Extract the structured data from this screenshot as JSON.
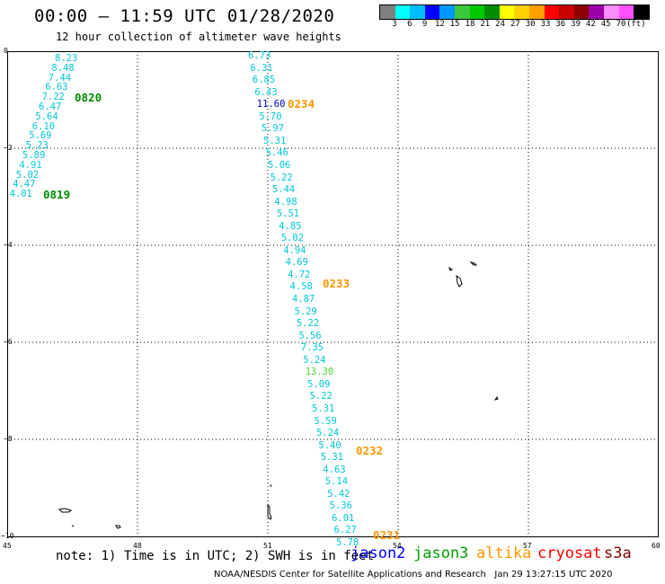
{
  "header": {
    "title": "00:00 – 11:59 UTC 01/28/2020",
    "subtitle": "12 hour collection of altimeter wave heights"
  },
  "legend": {
    "colors": [
      "#7f7f7f",
      "#00ffff",
      "#00bfff",
      "#0000ff",
      "#0096ff",
      "#3cc83c",
      "#00c800",
      "#008c00",
      "#ffff00",
      "#ffd200",
      "#ffa000",
      "#ff0000",
      "#c80000",
      "#8c0000",
      "#9b00aa",
      "#ff8cff",
      "#ff50ff",
      "#000000"
    ],
    "labels": [
      "3",
      "6",
      "9",
      "12",
      "15",
      "18",
      "21",
      "24",
      "27",
      "30",
      "33",
      "36",
      "39",
      "42",
      "45",
      "70",
      "(ft)"
    ]
  },
  "axes": {
    "x_ticks": [
      "45",
      "48",
      "51",
      "54",
      "57",
      "60"
    ],
    "y_ticks": [
      "0",
      "−2",
      "−4",
      "−6",
      "−8",
      "−10"
    ]
  },
  "wave_heights": {
    "track_west": [
      {
        "v": "8.23"
      },
      {
        "v": "8.48"
      },
      {
        "v": "7.44"
      },
      {
        "v": "6.63"
      },
      {
        "v": "7.22"
      },
      {
        "v": "6.47"
      },
      {
        "v": "5.64"
      },
      {
        "v": "6.10"
      },
      {
        "v": "5.69"
      },
      {
        "v": "5.23"
      },
      {
        "v": "5.89"
      },
      {
        "v": "4.91"
      },
      {
        "v": "5.02"
      },
      {
        "v": "4.47"
      },
      {
        "v": "4.01"
      }
    ],
    "track_east": [
      {
        "v": "6.73"
      },
      {
        "v": "6.31"
      },
      {
        "v": "6.85"
      },
      {
        "v": "6.43"
      },
      {
        "v": "11.60",
        "c": "#0000c8"
      },
      {
        "v": "5.70"
      },
      {
        "v": "5.97"
      },
      {
        "v": "5.31"
      },
      {
        "v": "5.46"
      },
      {
        "v": "5.06"
      },
      {
        "v": "5.22"
      },
      {
        "v": "5.44"
      },
      {
        "v": "4.98"
      },
      {
        "v": "5.51"
      },
      {
        "v": "4.85"
      },
      {
        "v": "5.02"
      },
      {
        "v": "4.94"
      },
      {
        "v": "4.69"
      },
      {
        "v": "4.72"
      },
      {
        "v": "4.58"
      },
      {
        "v": "4.87"
      },
      {
        "v": "5.29"
      },
      {
        "v": "5.22"
      },
      {
        "v": "5.56"
      },
      {
        "v": "7.35"
      },
      {
        "v": "5.24"
      },
      {
        "v": "13.30",
        "c": "#50d232"
      },
      {
        "v": "5.09"
      },
      {
        "v": "5.22"
      },
      {
        "v": "5.31"
      },
      {
        "v": "5.59"
      },
      {
        "v": "5.24"
      },
      {
        "v": "5.40"
      },
      {
        "v": "5.31"
      },
      {
        "v": "4.63"
      },
      {
        "v": "5.14"
      },
      {
        "v": "5.42"
      },
      {
        "v": "5.36"
      },
      {
        "v": "6.01"
      },
      {
        "v": "6.27"
      },
      {
        "v": "5.78"
      }
    ]
  },
  "pass_times": [
    {
      "text": "0820",
      "color": "#008c00"
    },
    {
      "text": "0819",
      "color": "#008c00"
    },
    {
      "text": "0234",
      "color": "#ff9600"
    },
    {
      "text": "0233",
      "color": "#ff9600"
    },
    {
      "text": "0232",
      "color": "#ff9600"
    },
    {
      "text": "0231",
      "color": "#ff9600"
    }
  ],
  "footer": {
    "note": "note: 1) Time is in UTC; 2) SWH is in feet",
    "satellites": [
      {
        "name": "jason2",
        "color": "#0000ff"
      },
      {
        "name": "jason3",
        "color": "#00a000"
      },
      {
        "name": "altika",
        "color": "#ff9600"
      },
      {
        "name": "cryosat",
        "color": "#ff0000"
      },
      {
        "name": "s3a",
        "color": "#8c0000"
      }
    ],
    "credit": "NOAA/NESDIS Center for Satellite Applications and Research",
    "timestamp": "Jan 29 13:27:15 UTC 2020"
  }
}
